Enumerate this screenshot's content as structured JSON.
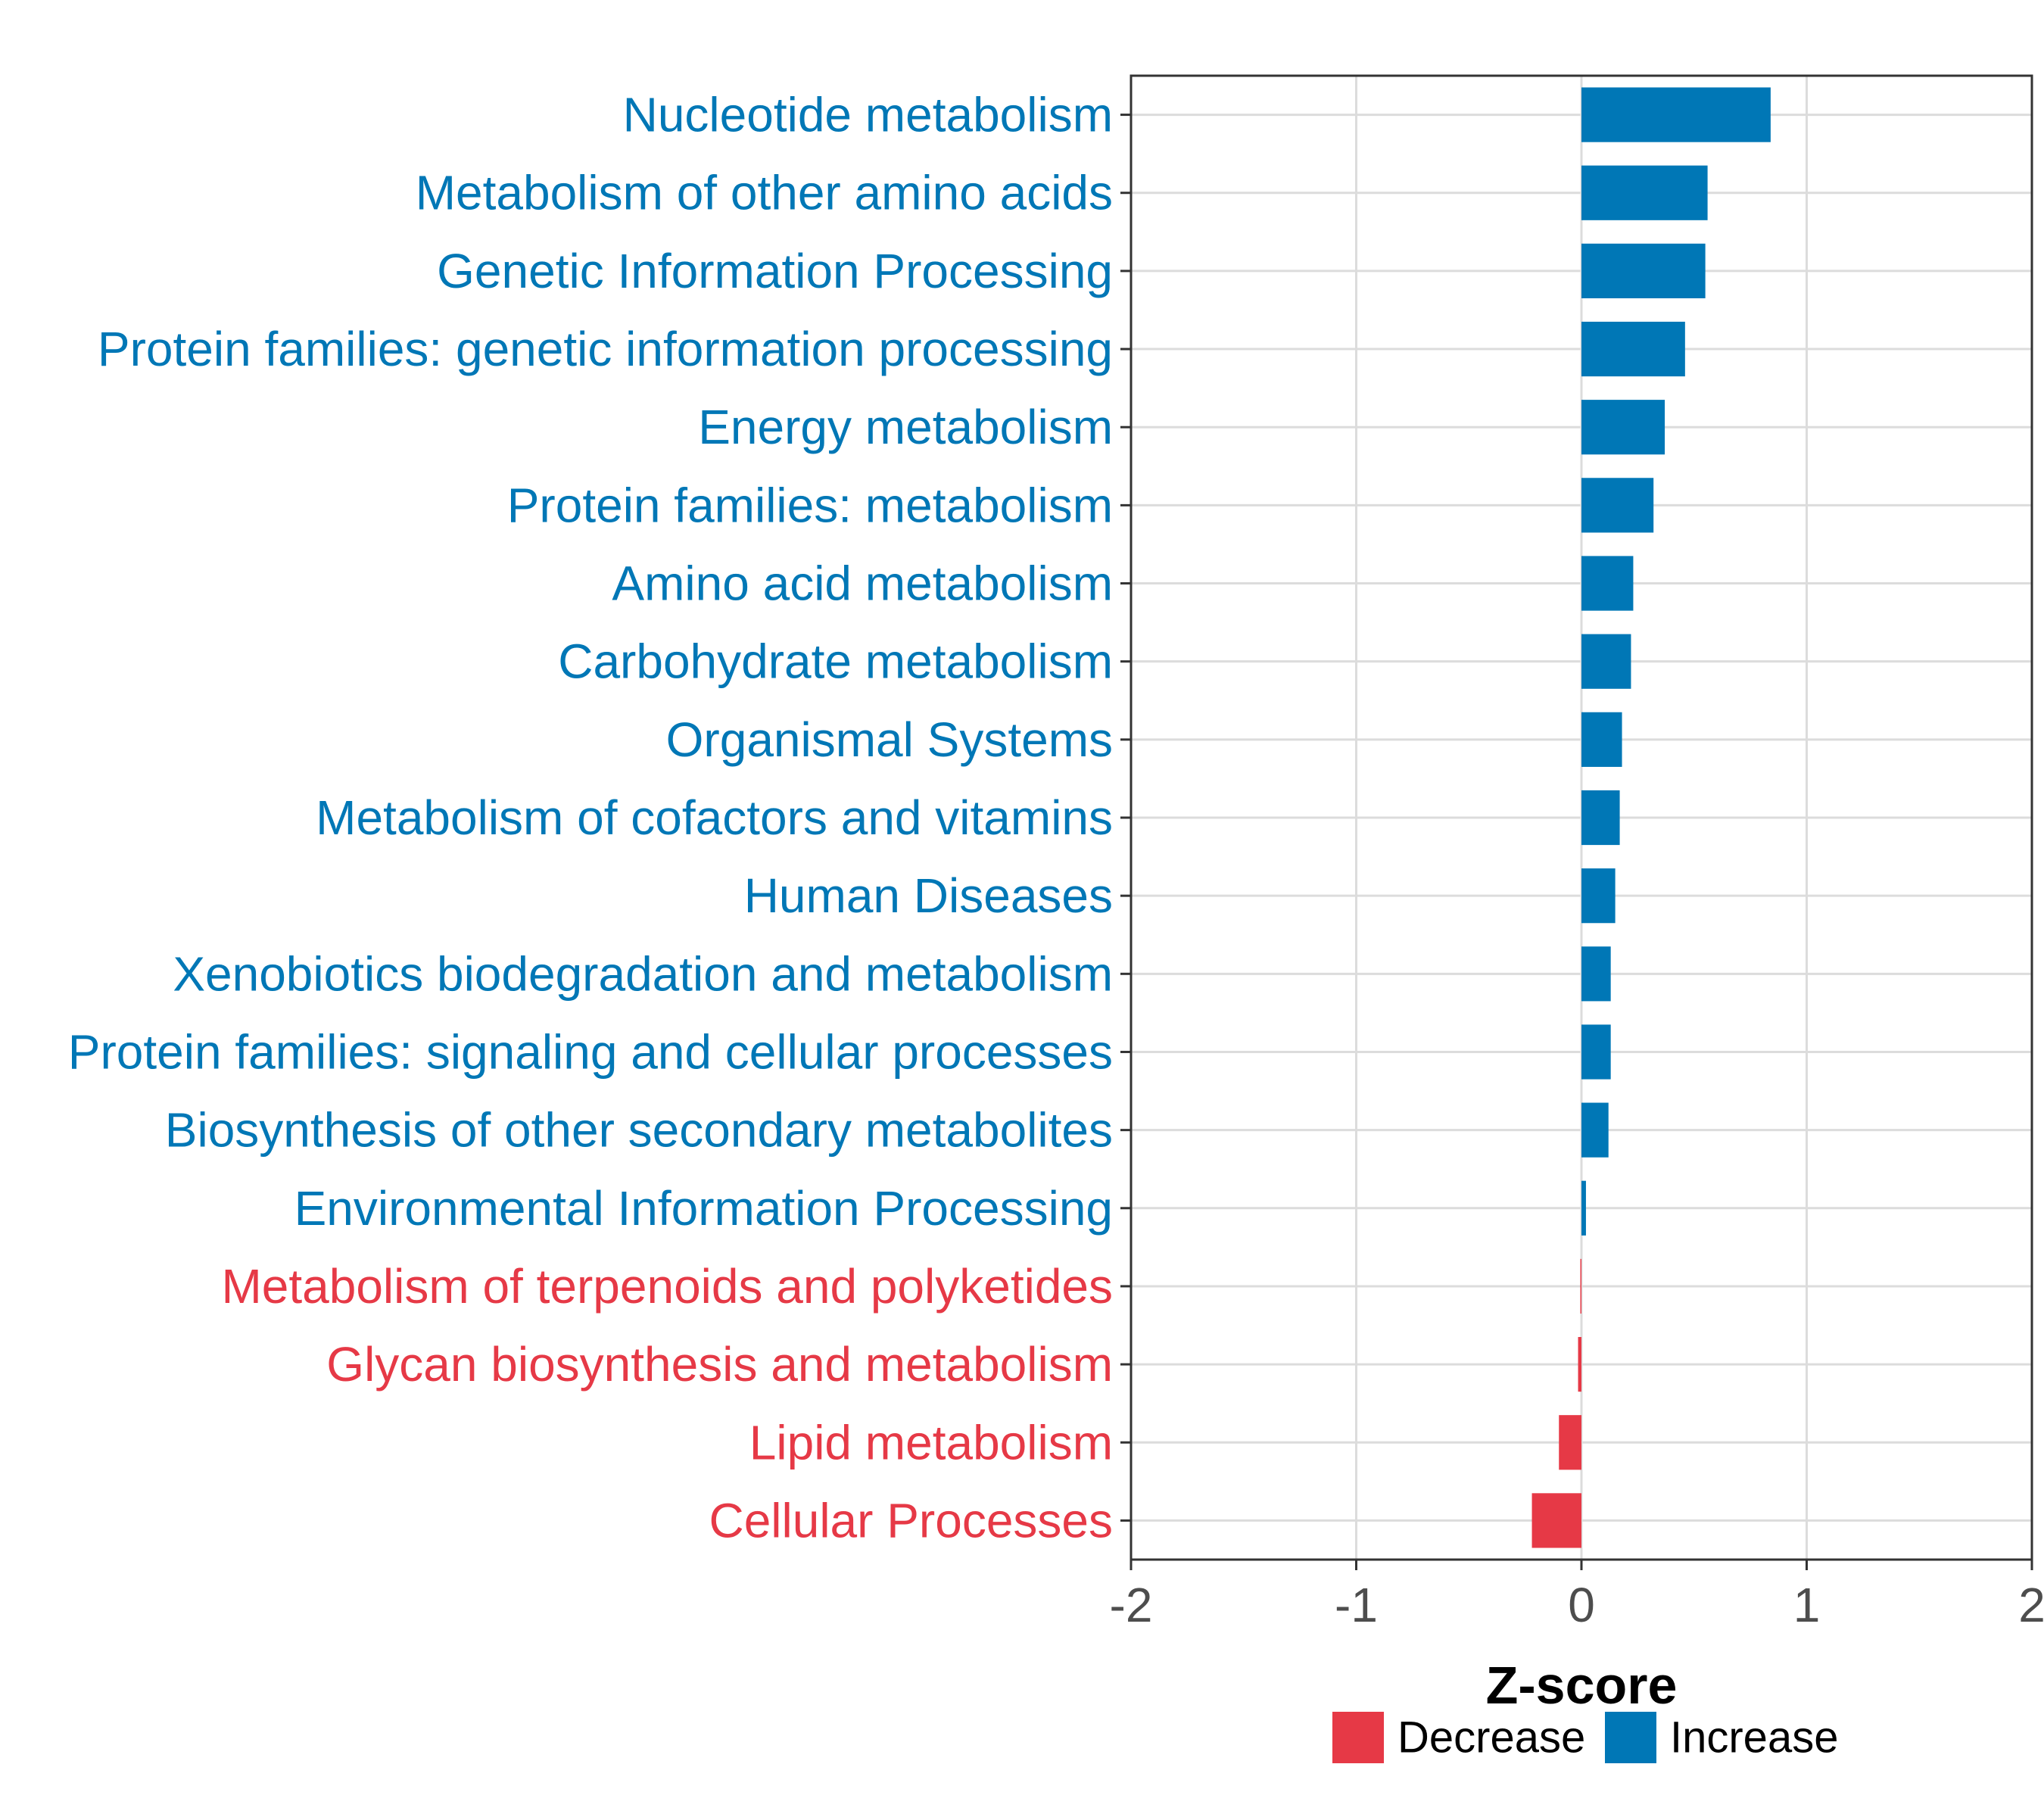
{
  "chart_data": {
    "type": "bar",
    "orientation": "horizontal",
    "title": "",
    "xlabel": "Z-score",
    "ylabel": "",
    "xlim": [
      -2,
      2
    ],
    "xticks": [
      -2,
      -1,
      0,
      1,
      2
    ],
    "xtick_labels": [
      "-2",
      "-1",
      "0",
      "1",
      "2"
    ],
    "grid": true,
    "legend_position": "bottom",
    "categories": [
      "Nucleotide metabolism",
      "Metabolism of other amino acids",
      "Genetic Information Processing",
      "Protein families: genetic information processing",
      "Energy metabolism",
      "Protein families: metabolism",
      "Amino acid metabolism",
      "Carbohydrate metabolism",
      "Organismal Systems",
      "Metabolism of cofactors and vitamins",
      "Human Diseases",
      "Xenobiotics biodegradation and metabolism",
      "Protein families: signaling and cellular processes",
      "Biosynthesis of other secondary metabolites",
      "Environmental Information Processing",
      "Metabolism of terpenoids and polyketides",
      "Glycan biosynthesis and metabolism",
      "Lipid metabolism",
      "Cellular Processes"
    ],
    "values": [
      0.84,
      0.56,
      0.55,
      0.46,
      0.37,
      0.32,
      0.23,
      0.22,
      0.18,
      0.17,
      0.15,
      0.13,
      0.13,
      0.12,
      0.02,
      -0.005,
      -0.015,
      -0.1,
      -0.22
    ],
    "groups": [
      "Increase",
      "Increase",
      "Increase",
      "Increase",
      "Increase",
      "Increase",
      "Increase",
      "Increase",
      "Increase",
      "Increase",
      "Increase",
      "Increase",
      "Increase",
      "Increase",
      "Increase",
      "Decrease",
      "Decrease",
      "Decrease",
      "Decrease"
    ],
    "legend": [
      {
        "name": "Decrease",
        "color": "#E63946"
      },
      {
        "name": "Increase",
        "color": "#0077B6"
      }
    ],
    "colors": {
      "Decrease": "#E63946",
      "Increase": "#0077B6"
    }
  }
}
